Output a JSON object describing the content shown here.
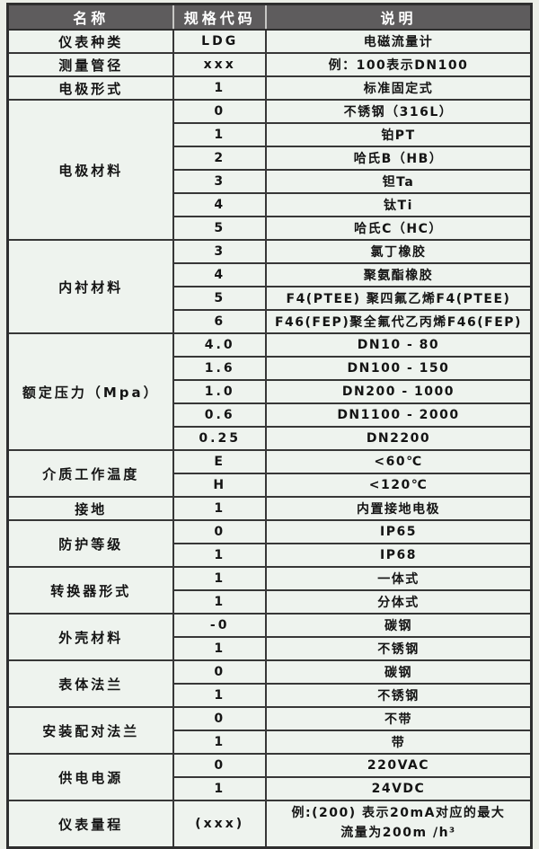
{
  "colors": {
    "page_background": "#ebeee7",
    "cell_background": "#eef3ee",
    "header_background": "#5e5c5d",
    "header_text": "#ffffff",
    "border": "#373737",
    "body_text": "#141414"
  },
  "table": {
    "headers": [
      "名称",
      "规格代码",
      "说明"
    ],
    "groups": [
      {
        "name": "仪表种类",
        "rows": [
          {
            "code": "LDG",
            "desc": "电磁流量计"
          }
        ]
      },
      {
        "name": "测量管径",
        "rows": [
          {
            "code": "xxx",
            "desc": "例：100表示DN100"
          }
        ]
      },
      {
        "name": "电极形式",
        "rows": [
          {
            "code": "1",
            "desc": "标准固定式"
          }
        ]
      },
      {
        "name": "电极材料",
        "rows": [
          {
            "code": "0",
            "desc": "不锈钢（316L）"
          },
          {
            "code": "1",
            "desc": "铂PT"
          },
          {
            "code": "2",
            "desc": "哈氏B（HB）"
          },
          {
            "code": "3",
            "desc": "钽Ta"
          },
          {
            "code": "4",
            "desc": "钛Ti"
          },
          {
            "code": "5",
            "desc": "哈氏C（HC）"
          }
        ]
      },
      {
        "name": "内衬材料",
        "rows": [
          {
            "code": "3",
            "desc": "氯丁橡胶"
          },
          {
            "code": "4",
            "desc": "聚氨酯橡胶"
          },
          {
            "code": "5",
            "desc": "F4(PTEE) 聚四氟乙烯F4(PTEE)"
          },
          {
            "code": "6",
            "desc": "F46(FEP)聚全氟代乙丙烯F46(FEP)"
          }
        ]
      },
      {
        "name": "额定压力（Mpa）",
        "rows": [
          {
            "code": "4.0",
            "desc": "DN10 - 80"
          },
          {
            "code": "1.6",
            "desc": "DN100 - 150"
          },
          {
            "code": "1.0",
            "desc": "DN200 - 1000"
          },
          {
            "code": "0.6",
            "desc": "DN1100 - 2000"
          },
          {
            "code": "0.25",
            "desc": "DN2200"
          }
        ]
      },
      {
        "name": "介质工作温度",
        "rows": [
          {
            "code": "E",
            "desc": "<60℃"
          },
          {
            "code": "H",
            "desc": "<120℃"
          }
        ]
      },
      {
        "name": "接地",
        "rows": [
          {
            "code": "1",
            "desc": "内置接地电极"
          }
        ]
      },
      {
        "name": "防护等级",
        "rows": [
          {
            "code": "0",
            "desc": "IP65"
          },
          {
            "code": "1",
            "desc": "IP68"
          }
        ]
      },
      {
        "name": "转换器形式",
        "rows": [
          {
            "code": "1",
            "desc": "一体式"
          },
          {
            "code": "1",
            "desc": "分体式"
          }
        ]
      },
      {
        "name": "外壳材料",
        "rows": [
          {
            "code": "-0",
            "desc": "碳钢"
          },
          {
            "code": "1",
            "desc": "不锈钢"
          }
        ]
      },
      {
        "name": "表体法兰",
        "rows": [
          {
            "code": "0",
            "desc": "碳钢"
          },
          {
            "code": "1",
            "desc": "不锈钢"
          }
        ]
      },
      {
        "name": "安装配对法兰",
        "rows": [
          {
            "code": "0",
            "desc": "不带"
          },
          {
            "code": "1",
            "desc": "带"
          }
        ]
      },
      {
        "name": "供电电源",
        "rows": [
          {
            "code": "0",
            "desc": "220VAC"
          },
          {
            "code": "1",
            "desc": "24VDC"
          }
        ]
      },
      {
        "name": "仪表量程",
        "tall": true,
        "rows": [
          {
            "code": "(xxx)",
            "desc_lines": [
              "例:(200) 表示20mA对应的最大",
              "流量为200m /h³"
            ]
          }
        ]
      }
    ]
  }
}
